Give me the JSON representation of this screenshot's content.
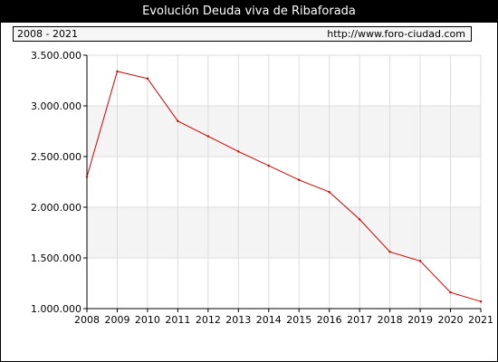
{
  "header": {
    "title": "Evolución Deuda viva de Ribaforada",
    "period": "2008 - 2021",
    "source": "http://www.foro-ciudad.com"
  },
  "colors": {
    "line": "#cc0000",
    "plot_band": "#f4f4f4",
    "grid": "#dcdcdc",
    "axis": "#000000"
  },
  "chart_data": {
    "type": "line",
    "title": "Evolución Deuda viva de Ribaforada",
    "xlabel": "",
    "ylabel": "",
    "x": [
      "2008",
      "2009",
      "2010",
      "2011",
      "2012",
      "2013",
      "2014",
      "2015",
      "2016",
      "2017",
      "2018",
      "2019",
      "2020",
      "2021"
    ],
    "series": [
      {
        "values": [
          2300000,
          3340000,
          3270000,
          2850000,
          2700000,
          2550000,
          2410000,
          2270000,
          2150000,
          1880000,
          1560000,
          1470000,
          1160000,
          1070000
        ]
      }
    ],
    "ylim": [
      1000000,
      3500000
    ],
    "yticks": [
      1000000,
      1500000,
      2000000,
      2500000,
      3000000,
      3500000
    ],
    "ytick_labels": [
      "1.000.000",
      "1.500.000",
      "2.000.000",
      "2.500.000",
      "3.000.000",
      "3.500.000"
    ],
    "grid": true,
    "legend": "none"
  }
}
